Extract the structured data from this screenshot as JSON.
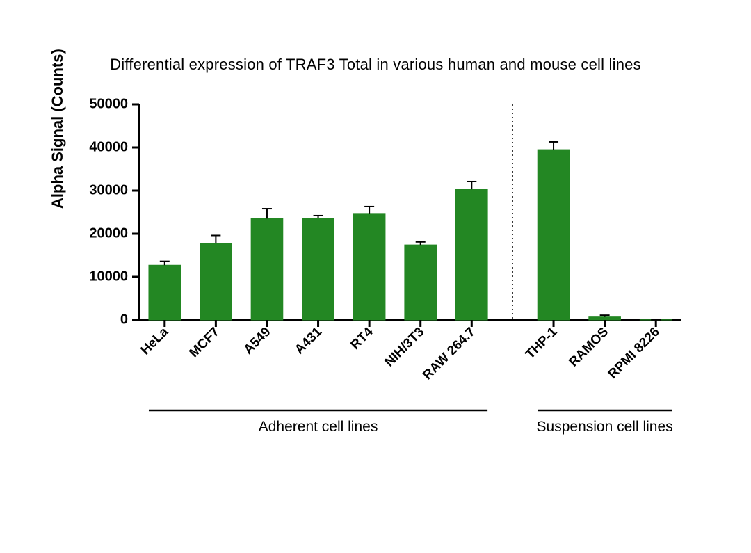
{
  "chart": {
    "type": "bar",
    "title": "Differential expression of TRAF3 Total in various human and mouse cell lines",
    "ylabel": "Alpha Signal (Counts)",
    "ylim": [
      0,
      50000
    ],
    "ytick_step": 10000,
    "yticks": [
      0,
      10000,
      20000,
      30000,
      40000,
      50000
    ],
    "background_color": "#ffffff",
    "axis_color": "#000000",
    "bar_color": "#238723",
    "bar_border_color": "#238723",
    "text_color": "#000000",
    "bar_width": 0.62,
    "error_cap_width": 14,
    "error_line_width": 2,
    "title_fontsize": 22,
    "ylabel_fontsize": 22,
    "tick_fontsize": 20,
    "xlabel_fontsize": 19,
    "grouplabel_fontsize": 21,
    "divider_style": "dotted",
    "groups": [
      {
        "label": "Adherent cell lines",
        "start": 0,
        "end": 6
      },
      {
        "label": "Suspension cell lines",
        "start": 7,
        "end": 9
      }
    ],
    "bars": [
      {
        "label": "HeLa",
        "value": 12700,
        "error": 900
      },
      {
        "label": "MCF7",
        "value": 17800,
        "error": 1800
      },
      {
        "label": "A549",
        "value": 23500,
        "error": 2300
      },
      {
        "label": "A431",
        "value": 23600,
        "error": 600
      },
      {
        "label": "RT4",
        "value": 24700,
        "error": 1600
      },
      {
        "label": "NIH/3T3",
        "value": 17400,
        "error": 700
      },
      {
        "label": "RAW 264.7",
        "value": 30300,
        "error": 1800
      },
      {
        "label": "THP-1",
        "value": 39500,
        "error": 1800
      },
      {
        "label": "RAMOS",
        "value": 700,
        "error": 400
      },
      {
        "label": "RPMI 8226",
        "value": 50,
        "error": 50
      }
    ]
  }
}
